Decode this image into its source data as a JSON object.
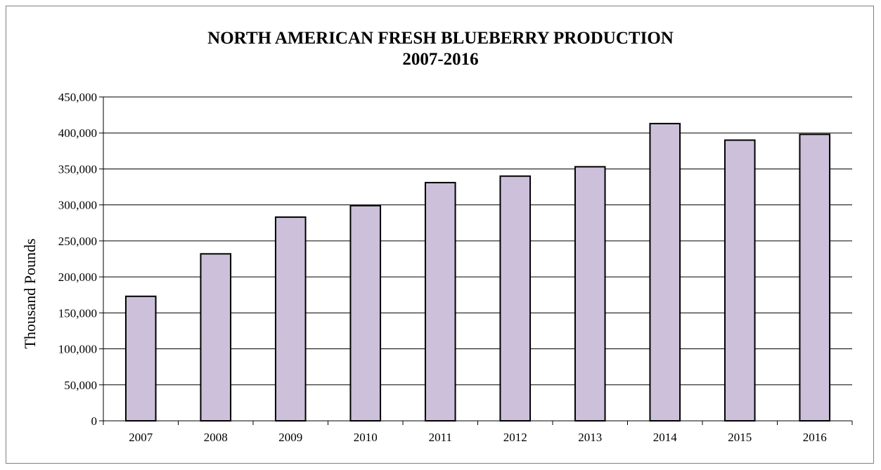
{
  "chart_data": {
    "type": "bar",
    "title_lines": [
      "NORTH AMERICAN FRESH BLUEBERRY PRODUCTION",
      "2007-2016"
    ],
    "xlabel": "",
    "ylabel": "Thousand Pounds",
    "categories": [
      "2007",
      "2008",
      "2009",
      "2010",
      "2011",
      "2012",
      "2013",
      "2014",
      "2015",
      "2016"
    ],
    "values": [
      173000,
      232000,
      283000,
      299000,
      331000,
      340000,
      353000,
      413000,
      390000,
      398000
    ],
    "ylim": [
      0,
      450000
    ],
    "yticks": [
      0,
      50000,
      100000,
      150000,
      200000,
      250000,
      300000,
      350000,
      400000,
      450000
    ],
    "ytick_labels": [
      "0",
      "50,000",
      "100,000",
      "150,000",
      "200,000",
      "250,000",
      "300,000",
      "350,000",
      "400,000",
      "450,000"
    ],
    "grid": true,
    "legend": "none",
    "bar_color": "#ccc0da",
    "bar_edge_color": "#000000"
  }
}
